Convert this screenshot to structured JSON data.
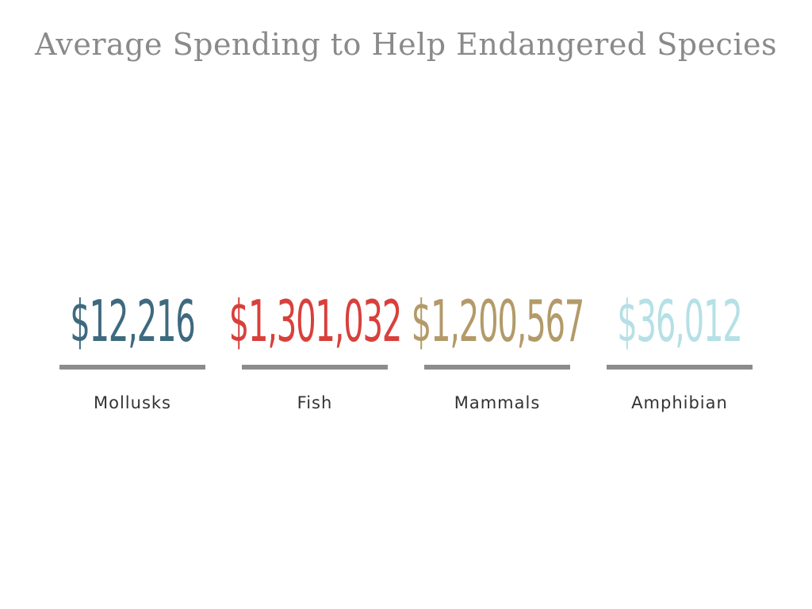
{
  "title": "Average Spending to Help Endangered Species",
  "chart_data": {
    "type": "table",
    "title": "Average Spending to Help Endangered Species",
    "categories": [
      "Mollusks",
      "Fish",
      "Mammals",
      "Amphibian"
    ],
    "values": [
      12216,
      1301032,
      1200567,
      36012
    ],
    "display_values": [
      "$12,216",
      "$1,301,032",
      "$1,200,567",
      "$36,012"
    ],
    "colors": [
      "#3e6a7f",
      "#d9403b",
      "#b39a68",
      "#b5e0e6"
    ]
  }
}
